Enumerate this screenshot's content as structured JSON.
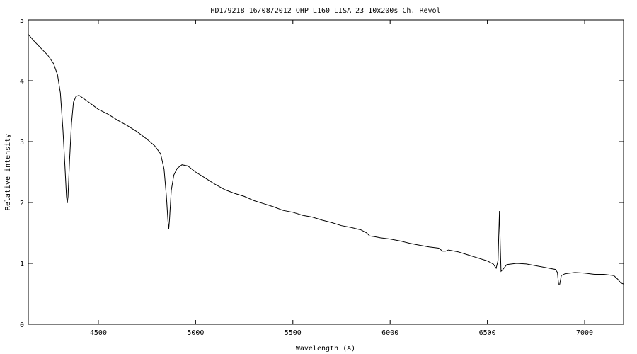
{
  "chart_data": {
    "type": "line",
    "title": "HD179218  16/08/2012 OHP L160 LISA 23  10x200s   Ch. Revol",
    "xlabel": "Wavelength (A)",
    "ylabel": "Relative intensity",
    "xlim": [
      4140,
      7200
    ],
    "ylim": [
      0,
      5
    ],
    "x_ticks": [
      4500,
      5000,
      5500,
      6000,
      6500,
      7000
    ],
    "y_ticks": [
      0,
      1,
      2,
      3,
      4,
      5
    ],
    "grid": false,
    "series": [
      {
        "color": "#000000",
        "points": [
          [
            4140,
            4.76
          ],
          [
            4170,
            4.65
          ],
          [
            4200,
            4.55
          ],
          [
            4240,
            4.42
          ],
          [
            4270,
            4.28
          ],
          [
            4290,
            4.1
          ],
          [
            4305,
            3.8
          ],
          [
            4318,
            3.2
          ],
          [
            4328,
            2.6
          ],
          [
            4336,
            2.1
          ],
          [
            4340,
            1.99
          ],
          [
            4344,
            2.1
          ],
          [
            4352,
            2.7
          ],
          [
            4362,
            3.3
          ],
          [
            4372,
            3.65
          ],
          [
            4385,
            3.74
          ],
          [
            4400,
            3.76
          ],
          [
            4450,
            3.65
          ],
          [
            4500,
            3.53
          ],
          [
            4550,
            3.45
          ],
          [
            4600,
            3.35
          ],
          [
            4650,
            3.26
          ],
          [
            4700,
            3.16
          ],
          [
            4750,
            3.04
          ],
          [
            4790,
            2.93
          ],
          [
            4820,
            2.8
          ],
          [
            4838,
            2.55
          ],
          [
            4850,
            2.1
          ],
          [
            4858,
            1.7
          ],
          [
            4862,
            1.56
          ],
          [
            4866,
            1.72
          ],
          [
            4875,
            2.2
          ],
          [
            4888,
            2.45
          ],
          [
            4905,
            2.56
          ],
          [
            4930,
            2.62
          ],
          [
            4960,
            2.6
          ],
          [
            5000,
            2.5
          ],
          [
            5050,
            2.4
          ],
          [
            5100,
            2.3
          ],
          [
            5150,
            2.21
          ],
          [
            5200,
            2.15
          ],
          [
            5250,
            2.1
          ],
          [
            5300,
            2.03
          ],
          [
            5350,
            1.98
          ],
          [
            5400,
            1.93
          ],
          [
            5450,
            1.87
          ],
          [
            5500,
            1.84
          ],
          [
            5550,
            1.79
          ],
          [
            5600,
            1.76
          ],
          [
            5650,
            1.71
          ],
          [
            5700,
            1.67
          ],
          [
            5750,
            1.62
          ],
          [
            5800,
            1.59
          ],
          [
            5850,
            1.55
          ],
          [
            5880,
            1.5
          ],
          [
            5895,
            1.45
          ],
          [
            5920,
            1.44
          ],
          [
            5950,
            1.42
          ],
          [
            6000,
            1.4
          ],
          [
            6050,
            1.37
          ],
          [
            6100,
            1.33
          ],
          [
            6150,
            1.3
          ],
          [
            6200,
            1.27
          ],
          [
            6250,
            1.25
          ],
          [
            6270,
            1.2
          ],
          [
            6285,
            1.2
          ],
          [
            6300,
            1.22
          ],
          [
            6350,
            1.19
          ],
          [
            6400,
            1.14
          ],
          [
            6450,
            1.09
          ],
          [
            6500,
            1.04
          ],
          [
            6530,
            0.99
          ],
          [
            6545,
            0.92
          ],
          [
            6555,
            1.05
          ],
          [
            6562,
            1.86
          ],
          [
            6566,
            1.3
          ],
          [
            6570,
            0.87
          ],
          [
            6580,
            0.9
          ],
          [
            6600,
            0.98
          ],
          [
            6650,
            1.0
          ],
          [
            6700,
            0.99
          ],
          [
            6750,
            0.96
          ],
          [
            6800,
            0.93
          ],
          [
            6850,
            0.9
          ],
          [
            6860,
            0.85
          ],
          [
            6866,
            0.66
          ],
          [
            6872,
            0.66
          ],
          [
            6880,
            0.8
          ],
          [
            6900,
            0.83
          ],
          [
            6950,
            0.85
          ],
          [
            7000,
            0.84
          ],
          [
            7050,
            0.82
          ],
          [
            7100,
            0.82
          ],
          [
            7150,
            0.8
          ],
          [
            7170,
            0.74
          ],
          [
            7185,
            0.68
          ],
          [
            7200,
            0.66
          ]
        ]
      }
    ]
  }
}
